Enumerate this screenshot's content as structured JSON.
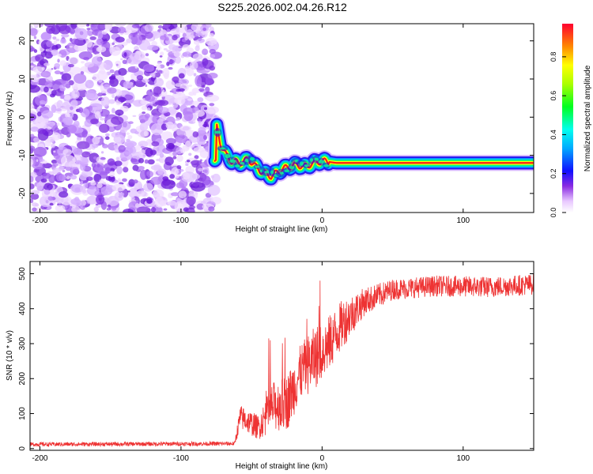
{
  "figure": {
    "title": "S225.2026.002.04.26.R12"
  },
  "chart_data": [
    {
      "type": "heatmap",
      "xlabel": "Height of straight line (km)",
      "ylabel": "Frequency (Hz)",
      "xlim": [
        -207,
        150
      ],
      "ylim": [
        -25,
        24.5
      ],
      "xticks": [
        -200,
        -100,
        0,
        100
      ],
      "yticks": [
        -20,
        -10,
        0,
        10,
        20
      ],
      "noise_region": {
        "x_range": [
          -207,
          -75
        ],
        "y_range": [
          -25,
          24.5
        ]
      },
      "ridge": [
        {
          "x": -75,
          "y": -2
        },
        {
          "x": -72,
          "y": -7
        },
        {
          "x": -68,
          "y": -10
        },
        {
          "x": -64,
          "y": -11.5
        },
        {
          "x": -58,
          "y": -12
        },
        {
          "x": -52,
          "y": -11
        },
        {
          "x": -47,
          "y": -13
        },
        {
          "x": -42,
          "y": -14.5
        },
        {
          "x": -36,
          "y": -15.5
        },
        {
          "x": -30,
          "y": -14
        },
        {
          "x": -24,
          "y": -13
        },
        {
          "x": -18,
          "y": -12.5
        },
        {
          "x": -12,
          "y": -13
        },
        {
          "x": -6,
          "y": -12
        },
        {
          "x": 0,
          "y": -11.5
        },
        {
          "x": 10,
          "y": -12
        },
        {
          "x": 30,
          "y": -12
        },
        {
          "x": 60,
          "y": -12
        },
        {
          "x": 100,
          "y": -12
        },
        {
          "x": 150,
          "y": -12
        }
      ],
      "colorbar": {
        "label": "Normalized spectral amplitude",
        "range": [
          0,
          0.97
        ],
        "ticks": [
          0.0,
          0.2,
          0.4,
          0.6,
          0.8
        ]
      }
    },
    {
      "type": "line",
      "xlabel": "Height of straight line (km)",
      "ylabel": "SNR (10 * v/v)",
      "xlim": [
        -207,
        150
      ],
      "ylim": [
        -5,
        535
      ],
      "xticks": [
        -200,
        -100,
        0,
        100
      ],
      "yticks": [
        0,
        100,
        200,
        300,
        400,
        500
      ],
      "series": [
        {
          "name": "SNR",
          "color": "#ee3333",
          "envelope": [
            {
              "x": -207,
              "mean": 12,
              "spread": 12
            },
            {
              "x": -62,
              "mean": 14,
              "spread": 12
            },
            {
              "x": -58,
              "mean": 90,
              "spread": 70
            },
            {
              "x": -45,
              "mean": 60,
              "spread": 70
            },
            {
              "x": -35,
              "mean": 120,
              "spread": 140
            },
            {
              "x": -25,
              "mean": 130,
              "spread": 160
            },
            {
              "x": -15,
              "mean": 220,
              "spread": 160
            },
            {
              "x": -5,
              "mean": 260,
              "spread": 180
            },
            {
              "x": 5,
              "mean": 300,
              "spread": 160
            },
            {
              "x": 15,
              "mean": 360,
              "spread": 140
            },
            {
              "x": 30,
              "mean": 420,
              "spread": 80
            },
            {
              "x": 50,
              "mean": 455,
              "spread": 60
            },
            {
              "x": 80,
              "mean": 465,
              "spread": 60
            },
            {
              "x": 120,
              "mean": 462,
              "spread": 60
            },
            {
              "x": 150,
              "mean": 470,
              "spread": 60
            }
          ]
        }
      ]
    }
  ]
}
